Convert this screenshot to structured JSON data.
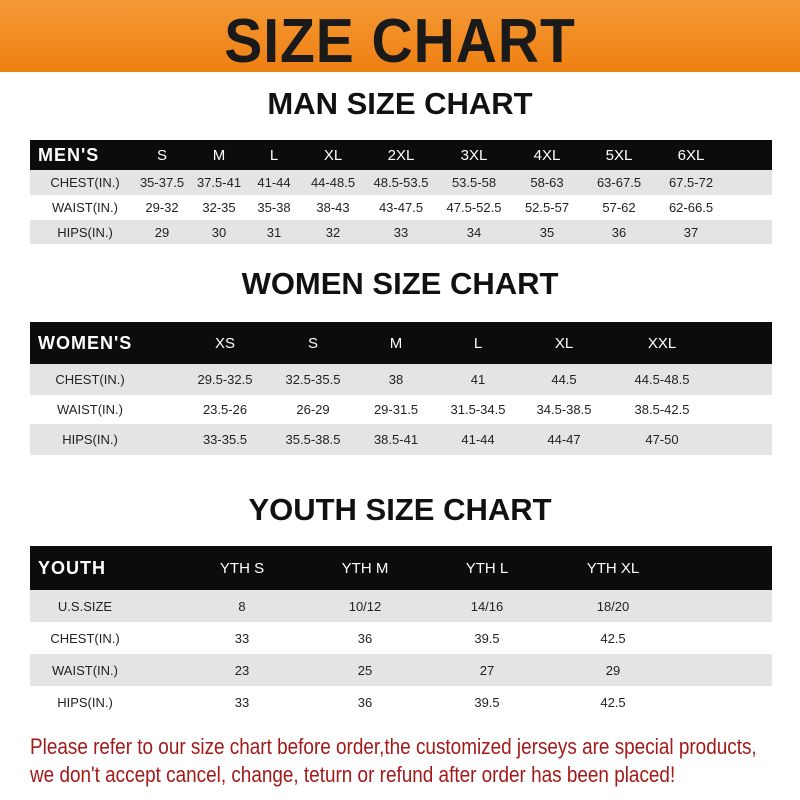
{
  "banner": {
    "title": "SIZE CHART",
    "color": "#f08a1e"
  },
  "tables": [
    {
      "title": "MAN SIZE CHART",
      "header": [
        "MEN'S",
        "S",
        "M",
        "L",
        "XL",
        "2XL",
        "3XL",
        "4XL",
        "5XL",
        "6XL"
      ],
      "rows": [
        [
          "CHEST(IN.)",
          "35-37.5",
          "37.5-41",
          "41-44",
          "44-48.5",
          "48.5-53.5",
          "53.5-58",
          "58-63",
          "63-67.5",
          "67.5-72"
        ],
        [
          "WAIST(IN.)",
          "29-32",
          "32-35",
          "35-38",
          "38-43",
          "43-47.5",
          "47.5-52.5",
          "52.5-57",
          "57-62",
          "62-66.5"
        ],
        [
          "HIPS(IN.)",
          "29",
          "30",
          "31",
          "32",
          "33",
          "34",
          "35",
          "36",
          "37"
        ]
      ]
    },
    {
      "title": "WOMEN SIZE CHART",
      "header": [
        "WOMEN'S",
        "XS",
        "S",
        "M",
        "L",
        "XL",
        "XXL"
      ],
      "rows": [
        [
          "CHEST(IN.)",
          "29.5-32.5",
          "32.5-35.5",
          "38",
          "41",
          "44.5",
          "44.5-48.5"
        ],
        [
          "WAIST(IN.)",
          "23.5-26",
          "26-29",
          "29-31.5",
          "31.5-34.5",
          "34.5-38.5",
          "38.5-42.5"
        ],
        [
          "HIPS(IN.)",
          "33-35.5",
          "35.5-38.5",
          "38.5-41",
          "41-44",
          "44-47",
          "47-50"
        ]
      ]
    },
    {
      "title": "YOUTH SIZE CHART",
      "header": [
        "YOUTH",
        "YTH S",
        "YTH M",
        "YTH L",
        "YTH XL"
      ],
      "rows": [
        [
          "U.S.SIZE",
          "8",
          "10/12",
          "14/16",
          "18/20"
        ],
        [
          "CHEST(IN.)",
          "33",
          "36",
          "39.5",
          "42.5"
        ],
        [
          "WAIST(IN.)",
          "23",
          "25",
          "27",
          "29"
        ],
        [
          "HIPS(IN.)",
          "33",
          "36",
          "39.5",
          "42.5"
        ]
      ]
    }
  ],
  "notice": {
    "line1": "Please refer to our size chart before order,the customized jerseys are special products,",
    "line2": "we don't accept cancel, change, teturn or refund after order has been placed!",
    "color": "#a31a1a"
  }
}
